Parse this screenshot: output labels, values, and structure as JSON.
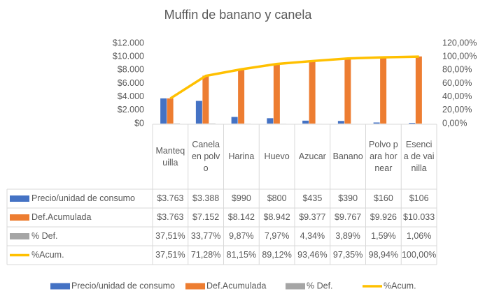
{
  "chart_data": {
    "type": "bar",
    "title": "Muffin de banano y canela",
    "categories": [
      "Mantequilla",
      "Canela en polvo",
      "Harina",
      "Huevo",
      "Azucar",
      "Banano",
      "Polvo para hornear",
      "Esencia de vainilla"
    ],
    "series": [
      {
        "name": "Precio/unidad de consumo",
        "color": "#4472c4",
        "type": "bar",
        "values": [
          3763,
          3388,
          990,
          800,
          435,
          390,
          160,
          106
        ],
        "value_labels": [
          "$3.763",
          "$3.388",
          "$990",
          "$800",
          "$435",
          "$390",
          "$160",
          "$106"
        ]
      },
      {
        "name": "Def.Acumulada",
        "color": "#ed7d31",
        "type": "bar",
        "values": [
          3763,
          7152,
          8142,
          8942,
          9377,
          9767,
          9926,
          10033
        ],
        "value_labels": [
          "$3.763",
          "$7.152",
          "$8.142",
          "$8.942",
          "$9.377",
          "$9.767",
          "$9.926",
          "$10.033"
        ]
      },
      {
        "name": "% Def.",
        "color": "#a5a5a5",
        "type": "bar",
        "values": [
          37.51,
          33.77,
          9.87,
          7.97,
          4.34,
          3.89,
          1.59,
          1.06
        ],
        "value_labels": [
          "37,51%",
          "33,77%",
          "9,87%",
          "7,97%",
          "4,34%",
          "3,89%",
          "1,59%",
          "1,06%"
        ]
      },
      {
        "name": "%Acum.",
        "color": "#ffc000",
        "type": "line",
        "axis": "y2",
        "values": [
          37.51,
          71.28,
          81.15,
          89.12,
          93.46,
          97.35,
          98.94,
          100
        ],
        "value_labels": [
          "37,51%",
          "71,28%",
          "81,15%",
          "89,12%",
          "93,46%",
          "97,35%",
          "98,94%",
          "100,00%"
        ]
      }
    ],
    "ylim": [
      0,
      12000
    ],
    "yticks": [
      {
        "value": 0,
        "label": "$0"
      },
      {
        "value": 2000,
        "label": "$2.000"
      },
      {
        "value": 4000,
        "label": "$4.000"
      },
      {
        "value": 6000,
        "label": "$6.000"
      },
      {
        "value": 8000,
        "label": "$8.000"
      },
      {
        "value": 10000,
        "label": "$10.000"
      },
      {
        "value": 12000,
        "label": "$12.000"
      }
    ],
    "y2lim": [
      0,
      120
    ],
    "y2ticks": [
      {
        "value": 0,
        "label": "0,00%"
      },
      {
        "value": 20,
        "label": "20,00%"
      },
      {
        "value": 40,
        "label": "40,00%"
      },
      {
        "value": 60,
        "label": "60,00%"
      },
      {
        "value": 80,
        "label": "80,00%"
      },
      {
        "value": 100,
        "label": "100,00%"
      },
      {
        "value": 120,
        "label": "120,00%"
      }
    ],
    "legend": "bottom"
  }
}
